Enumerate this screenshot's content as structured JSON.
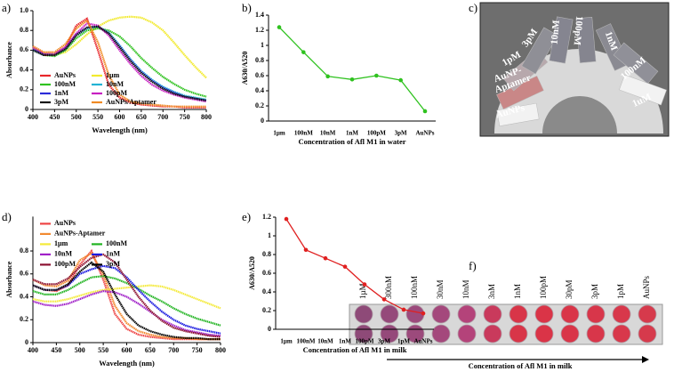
{
  "chart_data": [
    {
      "type": "line",
      "panel_label": "a)",
      "x_label": "Wavelength (nm)",
      "y_label": "Absorbance",
      "legend": "lower left",
      "x": [
        400,
        425,
        450,
        475,
        500,
        525,
        550,
        575,
        600,
        625,
        650,
        675,
        700,
        725,
        750,
        775,
        800
      ],
      "xlim": [
        400,
        800
      ],
      "xticks": [
        400,
        450,
        500,
        550,
        600,
        650,
        700,
        750,
        800
      ],
      "ylim": [
        0,
        1.0
      ],
      "yticks": [
        0,
        0.2,
        0.4,
        0.6,
        0.8,
        {
          "value": 1.0,
          "label": "1.0"
        }
      ],
      "series": [
        {
          "name": "AuNPs",
          "color": "#e8262a",
          "values": [
            0.62,
            0.55,
            0.55,
            0.63,
            0.85,
            0.92,
            0.6,
            0.25,
            0.12,
            0.07,
            0.05,
            0.04,
            0.03,
            0.03,
            0.02,
            0.02,
            0.02
          ]
        },
        {
          "name": "1µm",
          "color": "#f2ea2e",
          "values": [
            0.62,
            0.57,
            0.55,
            0.58,
            0.66,
            0.76,
            0.84,
            0.9,
            0.93,
            0.94,
            0.93,
            0.88,
            0.8,
            0.68,
            0.55,
            0.43,
            0.32
          ]
        },
        {
          "name": "100nM",
          "color": "#2fc21f",
          "values": [
            0.6,
            0.55,
            0.54,
            0.6,
            0.72,
            0.8,
            0.82,
            0.8,
            0.74,
            0.64,
            0.52,
            0.42,
            0.33,
            0.26,
            0.2,
            0.16,
            0.13
          ]
        },
        {
          "name": "10nM",
          "color": "#22b3d4",
          "values": [
            0.6,
            0.55,
            0.55,
            0.61,
            0.75,
            0.82,
            0.84,
            0.78,
            0.65,
            0.51,
            0.39,
            0.3,
            0.23,
            0.18,
            0.14,
            0.12,
            0.1
          ]
        },
        {
          "name": "1nM",
          "color": "#2b2bd9",
          "values": [
            0.61,
            0.56,
            0.55,
            0.62,
            0.76,
            0.83,
            0.84,
            0.77,
            0.64,
            0.5,
            0.38,
            0.29,
            0.22,
            0.17,
            0.13,
            0.11,
            0.09
          ]
        },
        {
          "name": "100pM",
          "color": "#c71fc1",
          "values": [
            0.63,
            0.57,
            0.57,
            0.63,
            0.77,
            0.87,
            0.85,
            0.75,
            0.6,
            0.46,
            0.34,
            0.25,
            0.19,
            0.15,
            0.12,
            0.1,
            0.08
          ]
        },
        {
          "name": "3pM",
          "color": "#111111",
          "values": [
            0.6,
            0.55,
            0.55,
            0.61,
            0.75,
            0.83,
            0.84,
            0.77,
            0.63,
            0.49,
            0.37,
            0.28,
            0.21,
            0.16,
            0.13,
            0.11,
            0.09
          ]
        },
        {
          "name": "AuNPs/Aptamer",
          "color": "#f08a24",
          "values": [
            0.64,
            0.58,
            0.58,
            0.66,
            0.82,
            0.9,
            0.68,
            0.35,
            0.15,
            0.08,
            0.06,
            0.05,
            0.04,
            0.03,
            0.03,
            0.03,
            0.03
          ]
        }
      ]
    },
    {
      "type": "category-line",
      "panel_label": "b)",
      "x_label": "Concentration of Afl M1 in water",
      "y_label": "A630/A520",
      "color": "#2fc21f",
      "categories": [
        "1µm",
        "100nM",
        "10nM",
        "1nM",
        "100pM",
        "3pM",
        "AuNPs"
      ],
      "values": [
        1.24,
        0.91,
        0.59,
        0.55,
        0.6,
        0.54,
        0.13
      ],
      "ylim": [
        0,
        1.4
      ],
      "yticks": [
        0,
        0.2,
        0.4,
        0.6,
        0.8,
        1,
        1.2,
        1.4
      ]
    },
    {
      "type": "line",
      "panel_label": "d)",
      "x_label": "Wavelength (nm)",
      "y_label": "Absorbance",
      "legend": "upper left",
      "x": [
        400,
        425,
        450,
        475,
        500,
        525,
        550,
        575,
        600,
        625,
        650,
        675,
        700,
        725,
        750,
        775,
        800
      ],
      "xlim": [
        400,
        800
      ],
      "xticks": [
        400,
        450,
        500,
        550,
        600,
        650,
        700,
        750,
        800
      ],
      "ylim": [
        0,
        1.1
      ],
      "yticks": [
        0,
        0.2,
        0.4,
        0.6,
        0.8
      ],
      "series": [
        {
          "name": "AuNPs",
          "color": "#ee4444",
          "values": [
            0.5,
            0.46,
            0.45,
            0.5,
            0.68,
            0.8,
            0.55,
            0.25,
            0.12,
            0.07,
            0.05,
            0.04,
            0.03,
            0.03,
            0.03,
            0.03,
            0.03
          ]
        },
        {
          "name": "AuNPs-Aptamer",
          "color": "#f28a30",
          "values": [
            0.55,
            0.5,
            0.49,
            0.54,
            0.72,
            0.78,
            0.6,
            0.32,
            0.17,
            0.1,
            0.07,
            0.05,
            0.04,
            0.04,
            0.03,
            0.03,
            0.03
          ]
        },
        {
          "name": "1µm",
          "color": "#f4ea3a",
          "values": [
            0.38,
            0.36,
            0.36,
            0.38,
            0.41,
            0.44,
            0.46,
            0.47,
            0.48,
            0.49,
            0.5,
            0.49,
            0.46,
            0.42,
            0.38,
            0.34,
            0.3
          ]
        },
        {
          "name": "100nM",
          "color": "#22b422",
          "values": [
            0.45,
            0.42,
            0.42,
            0.46,
            0.52,
            0.57,
            0.58,
            0.56,
            0.52,
            0.47,
            0.41,
            0.36,
            0.3,
            0.25,
            0.21,
            0.18,
            0.15
          ]
        },
        {
          "name": "10nM",
          "color": "#a020c8",
          "values": [
            0.36,
            0.33,
            0.32,
            0.34,
            0.38,
            0.42,
            0.45,
            0.44,
            0.4,
            0.34,
            0.27,
            0.2,
            0.15,
            0.11,
            0.09,
            0.07,
            0.06
          ]
        },
        {
          "name": "1nM",
          "color": "#1a1ae0",
          "values": [
            0.5,
            0.46,
            0.46,
            0.5,
            0.6,
            0.64,
            0.67,
            0.65,
            0.57,
            0.46,
            0.36,
            0.27,
            0.2,
            0.15,
            0.12,
            0.1,
            0.08
          ]
        },
        {
          "name": "100pM",
          "color": "#8c1030",
          "values": [
            0.55,
            0.51,
            0.51,
            0.56,
            0.66,
            0.74,
            0.77,
            0.7,
            0.55,
            0.4,
            0.28,
            0.19,
            0.13,
            0.1,
            0.08,
            0.06,
            0.05
          ]
        },
        {
          "name": "3pM",
          "color": "#000000",
          "values": [
            0.5,
            0.46,
            0.46,
            0.51,
            0.62,
            0.7,
            0.62,
            0.42,
            0.25,
            0.15,
            0.1,
            0.07,
            0.05,
            0.04,
            0.04,
            0.03,
            0.03
          ]
        }
      ]
    },
    {
      "type": "category-line",
      "panel_label": "e)",
      "x_label": "Concentration of Afl M1 in milk",
      "y_label": "A630/A520",
      "color": "#e02020",
      "categories": [
        "1µm",
        "100nM",
        "10nM",
        "1nM",
        "100pM",
        "3pM",
        "1pM",
        "AuNPs"
      ],
      "values": [
        1.18,
        0.85,
        0.76,
        0.67,
        0.48,
        0.32,
        0.21,
        0.17
      ],
      "ylim": [
        0,
        1.2
      ],
      "yticks": [
        0,
        0.2,
        0.4,
        0.6,
        0.8,
        1,
        1.2
      ]
    }
  ],
  "photo": {
    "panel_label": "c)",
    "labels": [
      "AuNPs",
      "AuNP-",
      "Aptamer",
      "1pM",
      "3pM",
      "10nM",
      "100pM",
      "1nM",
      "100nM",
      "1uM"
    ]
  },
  "plate": {
    "panel_label": "f)",
    "caption": "Concentration  of Afl M1 in milk",
    "columns": [
      "1µM",
      "300nM",
      "100nM",
      "30nM",
      "10nM",
      "3nM",
      "1nM",
      "100pM",
      "30pM",
      "3pM",
      "1pM",
      "AuNPs"
    ],
    "well_colors": [
      "#8e4a78",
      "#95497a",
      "#9c4a7c",
      "#a4487c",
      "#b4437a",
      "#c93a5c",
      "#d83548",
      "#da3447",
      "#d93548",
      "#d8364a",
      "#d8384b",
      "#d63a4c"
    ]
  }
}
